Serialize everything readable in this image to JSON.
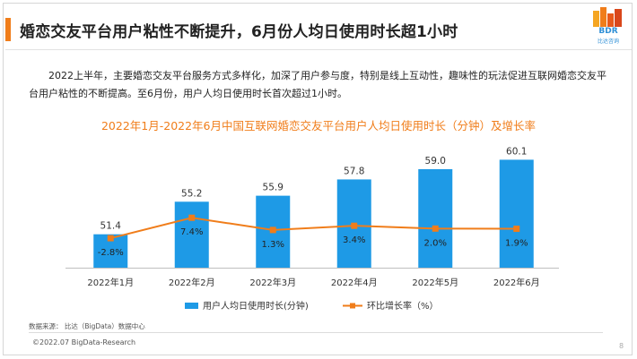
{
  "header": {
    "title": "婚恋交友平台用户粘性不断提升，6月份人均日使用时长超1小时",
    "logo_text": "BDR",
    "logo_sub": "比达咨询"
  },
  "body_text": "2022上半年，主要婚恋交友平台服务方式多样化，加深了用户参与度，特别是线上互动性，趣味性的玩法促进互联网婚恋交友平台用户粘性的不断提高。至6月份，用户人均日使用时长首次超过1小时。",
  "chart_data": {
    "type": "bar",
    "title": "2022年1月-2022年6月中国互联网婚恋交友平台用户人均日使用时长（分钟）及增长率",
    "categories": [
      "2022年1月",
      "2022年2月",
      "2022年3月",
      "2022年4月",
      "2022年5月",
      "2022年6月"
    ],
    "series": [
      {
        "name": "用户人均日使用时长(分钟)",
        "type": "bar",
        "values": [
          51.4,
          55.2,
          55.9,
          57.8,
          59.0,
          60.1
        ],
        "labels": [
          "51.4",
          "55.2",
          "55.9",
          "57.8",
          "59.0",
          "60.1"
        ],
        "color": "#1e9ae6"
      },
      {
        "name": "环比增长率（%）",
        "type": "line",
        "values": [
          -2.8,
          7.4,
          1.3,
          3.4,
          2.0,
          1.9
        ],
        "labels": [
          "-2.8%",
          "7.4%",
          "1.3%",
          "3.4%",
          "2.0%",
          "1.9%"
        ],
        "color": "#f07d1a"
      }
    ],
    "legend": "bottom-center",
    "grid": false
  },
  "footer": {
    "source": "数据来源： 比达（BigData）数据中心",
    "copyright": "©2022.07 BigData-Research",
    "page_number": "8"
  }
}
